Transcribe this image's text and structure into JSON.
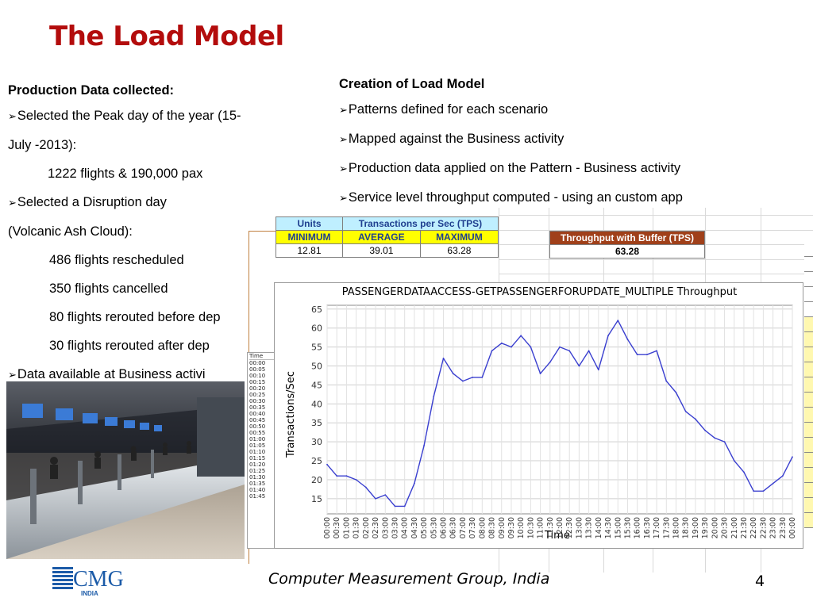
{
  "slide": {
    "title": "The Load Model",
    "footer_text": "Computer Measurement Group, India",
    "page_number": "4",
    "logo_text": "CMG",
    "logo_subtext": "INDIA"
  },
  "left_column": {
    "heading": "Production Data collected:",
    "lines": [
      "Selected the Peak day of the year (15-",
      "July -2013):",
      "1222 flights & 190,000 pax",
      "Selected a Disruption day",
      "(Volcanic Ash Cloud):",
      "486 flights rescheduled",
      "350 flights cancelled",
      "80 flights rerouted before dep",
      "30 flights rerouted after dep",
      "Data available at Business activi"
    ]
  },
  "right_column": {
    "heading": "Creation of Load Model",
    "bullets": [
      "Patterns defined for each scenario",
      "Mapped against the Business activity",
      "Production data applied on the Pattern - Business activity",
      "Service level throughput computed  - using an custom app"
    ]
  },
  "tps_table": {
    "units_label": "Units",
    "tps_label": "Transactions per Sec (TPS)",
    "col_min": "MINIMUM",
    "col_avg": "AVERAGE",
    "col_max": "MAXIMUM",
    "val_min": "12.81",
    "val_avg": "39.01",
    "val_max": "63.28"
  },
  "buffer_table": {
    "label": "Throughput with Buffer (TPS)",
    "value": "63.28"
  },
  "time_column": {
    "header": "Time",
    "values": [
      "00:00",
      "00:05",
      "00:10",
      "00:15",
      "00:20",
      "00:25",
      "00:30",
      "00:35",
      "00:40",
      "00:45",
      "00:50",
      "00:55",
      "01:00",
      "01:05",
      "01:10",
      "01:15",
      "01:20",
      "01:25",
      "01:30",
      "01:35",
      "01:40",
      "01:45"
    ]
  },
  "colors": {
    "title_red": "#b30c0c",
    "series_line": "#3a3fcf",
    "header_cyan": "#bfefff",
    "header_yellow": "#ffff00",
    "buffer_brown": "#a0401a"
  },
  "chart_data": {
    "type": "line",
    "title": "PASSENGERDATAACCESS-GETPASSENGERFORUPDATE_MULTIPLE Throughput",
    "xlabel": "Time",
    "ylabel": "Transactions/Sec",
    "ylim": [
      11,
      66
    ],
    "yticks": [
      15,
      20,
      25,
      30,
      35,
      40,
      45,
      50,
      55,
      60,
      65
    ],
    "grid": true,
    "x": [
      "00:00",
      "00:30",
      "01:00",
      "01:30",
      "02:00",
      "02:30",
      "03:00",
      "03:30",
      "04:00",
      "04:30",
      "05:00",
      "05:30",
      "06:00",
      "06:30",
      "07:00",
      "07:30",
      "08:00",
      "08:30",
      "09:00",
      "09:30",
      "10:00",
      "10:30",
      "11:00",
      "11:30",
      "12:00",
      "12:30",
      "13:00",
      "13:30",
      "14:00",
      "14:30",
      "15:00",
      "15:30",
      "16:00",
      "16:30",
      "17:00",
      "17:30",
      "18:00",
      "18:30",
      "19:00",
      "19:30",
      "20:00",
      "20:30",
      "21:00",
      "21:30",
      "22:00",
      "22:30",
      "23:00",
      "23:30",
      "00:00"
    ],
    "series": [
      {
        "values": [
          24,
          21,
          21,
          20,
          18,
          15,
          16,
          13,
          13,
          19,
          29,
          42,
          52,
          48,
          46,
          47,
          47,
          54,
          56,
          55,
          58,
          55,
          48,
          51,
          55,
          54,
          50,
          54,
          49,
          58,
          62,
          57,
          53,
          53,
          54,
          46,
          43,
          38,
          36,
          33,
          31,
          30,
          25,
          22,
          17,
          17,
          19,
          21,
          26
        ]
      }
    ]
  }
}
